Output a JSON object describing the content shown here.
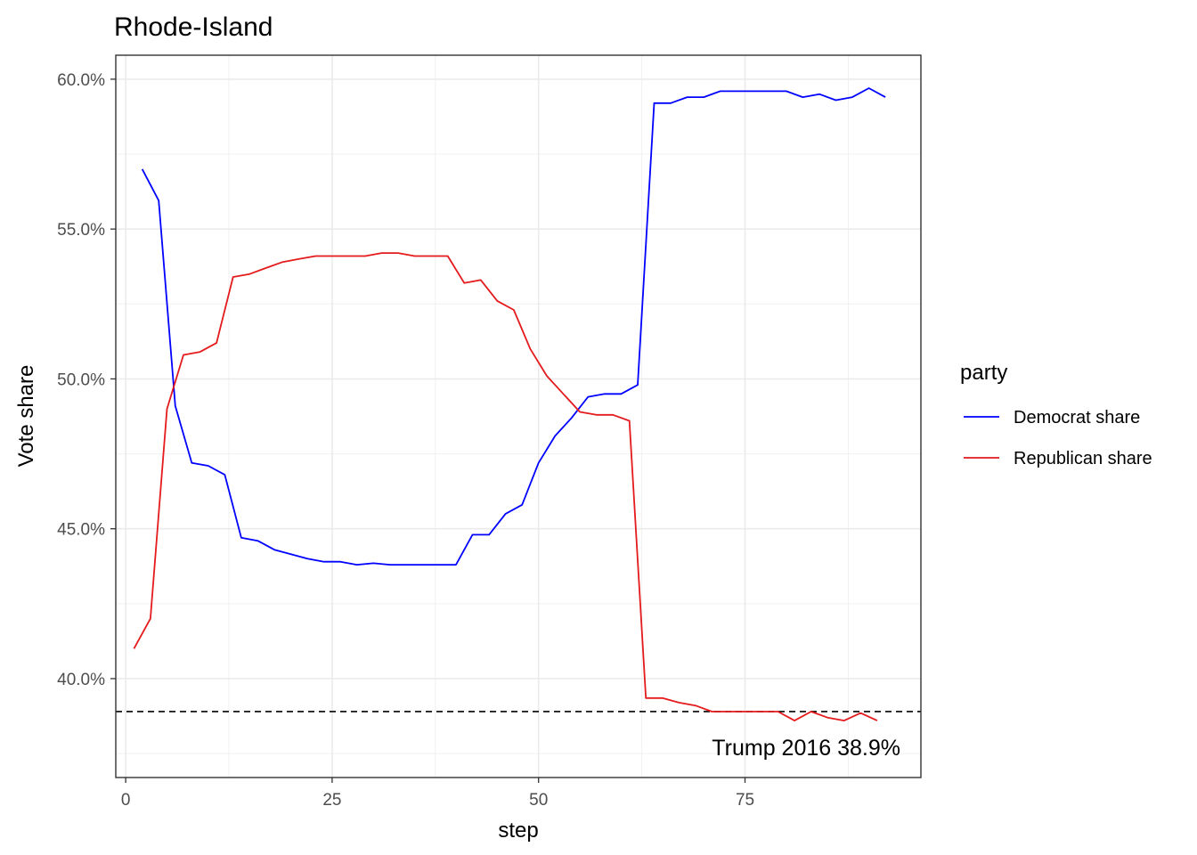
{
  "chart_data": {
    "type": "line",
    "title": "Rhode-Island",
    "xlabel": "step",
    "ylabel": "Vote share",
    "xlim": [
      -1.2,
      96.3
    ],
    "ylim": [
      36.7,
      60.8
    ],
    "x_ticks": [
      0,
      25,
      50,
      75
    ],
    "x_tick_labels": [
      "0",
      "25",
      "50",
      "75"
    ],
    "y_ticks": [
      40,
      45,
      50,
      55,
      60
    ],
    "y_tick_labels": [
      "40.0%",
      "45.0%",
      "50.0%",
      "55.0%",
      "60.0%"
    ],
    "grid": true,
    "legend": {
      "title": "party",
      "position": "right"
    },
    "series": [
      {
        "name": "Democrat share",
        "color": "#0000ff",
        "x": [
          2,
          4,
          6,
          8,
          10,
          12,
          14,
          16,
          18,
          20,
          22,
          24,
          26,
          28,
          30,
          32,
          34,
          36,
          38,
          40,
          42,
          44,
          46,
          48,
          50,
          52,
          54,
          56,
          58,
          60,
          62,
          64,
          66,
          68,
          70,
          72,
          74,
          76,
          78,
          80,
          82,
          84,
          86,
          88,
          90,
          92
        ],
        "y": [
          57.0,
          55.95,
          49.1,
          47.2,
          47.1,
          46.8,
          44.7,
          44.6,
          44.3,
          44.15,
          44.0,
          43.9,
          43.9,
          43.8,
          43.85,
          43.8,
          43.8,
          43.8,
          43.8,
          43.8,
          44.8,
          44.8,
          45.5,
          45.8,
          47.2,
          48.1,
          48.7,
          49.4,
          49.5,
          49.5,
          49.8,
          59.2,
          59.2,
          59.4,
          59.4,
          59.6,
          59.6,
          59.6,
          59.6,
          59.6,
          59.4,
          59.5,
          59.3,
          59.4,
          59.7,
          59.4
        ]
      },
      {
        "name": "Republican share",
        "color": "#e41a1c",
        "x": [
          1,
          3,
          5,
          7,
          9,
          11,
          13,
          15,
          17,
          19,
          21,
          23,
          25,
          27,
          29,
          31,
          33,
          35,
          37,
          39,
          41,
          43,
          45,
          47,
          49,
          51,
          53,
          55,
          57,
          59,
          61,
          63,
          65,
          67,
          69,
          71,
          73,
          75,
          77,
          79,
          81,
          83,
          85,
          87,
          89,
          91
        ],
        "y": [
          41.0,
          42.0,
          49.0,
          50.8,
          50.9,
          51.2,
          53.4,
          53.5,
          53.7,
          53.9,
          54.0,
          54.1,
          54.1,
          54.1,
          54.1,
          54.2,
          54.2,
          54.1,
          54.1,
          54.1,
          53.2,
          53.3,
          52.6,
          52.3,
          51.0,
          50.1,
          49.5,
          48.9,
          48.8,
          48.8,
          48.6,
          39.35,
          39.35,
          39.2,
          39.1,
          38.9,
          38.9,
          38.9,
          38.9,
          38.9,
          38.6,
          38.9,
          38.7,
          38.6,
          38.85,
          38.6
        ]
      }
    ],
    "reference_line": {
      "y": 38.9,
      "style": "dashed",
      "label": "Trump 2016 38.9%"
    }
  }
}
